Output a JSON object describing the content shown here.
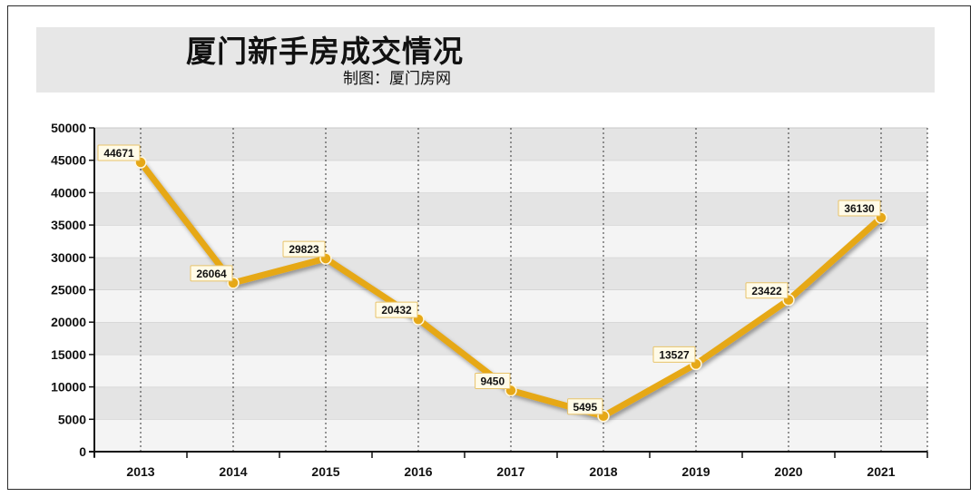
{
  "header": {
    "title": "厦门新手房成交情况",
    "subtitle": "制图：厦门房网"
  },
  "colors": {
    "line": "#E6A817",
    "marker": "#E6A817",
    "band_dark": "#e4e4e4",
    "band_light": "#f4f4f4"
  },
  "chart_data": {
    "type": "line",
    "title": "厦门新手房成交情况",
    "categories": [
      "2013",
      "2014",
      "2015",
      "2016",
      "2017",
      "2018",
      "2019",
      "2020",
      "2021"
    ],
    "series": [
      {
        "values": [
          44671,
          26064,
          29823,
          20432,
          9450,
          5495,
          13527,
          23422,
          36130
        ]
      }
    ],
    "ylim": [
      0,
      50000
    ],
    "yticks": [
      0,
      5000,
      10000,
      15000,
      20000,
      25000,
      30000,
      35000,
      40000,
      45000,
      50000
    ],
    "grid": true,
    "data_labels": true,
    "legend": "none"
  }
}
